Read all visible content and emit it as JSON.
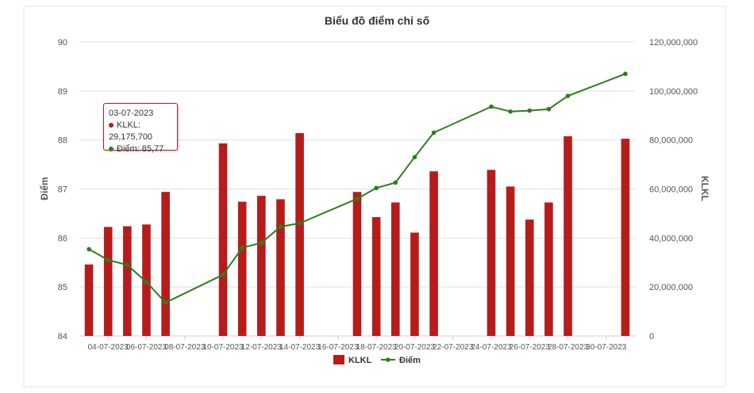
{
  "chart_data": {
    "type": "bar+line",
    "title": "Biểu đồ điểm chỉ số",
    "ylabel_left": "Điểm",
    "ylabel_right": "KLKL",
    "y_left": {
      "min": 84,
      "max": 90,
      "ticks": [
        "84",
        "85",
        "86",
        "87",
        "88",
        "89",
        "90"
      ]
    },
    "y_right": {
      "min": 0,
      "max": 120000000,
      "ticks": [
        "0",
        "20,000,000",
        "40,000,000",
        "60,000,000",
        "80,000,000",
        "100,000,000",
        "120,000,000"
      ]
    },
    "x_ticks": [
      "04-07-2023",
      "06-07-2023",
      "08-07-2023",
      "10-07-2023",
      "12-07-2023",
      "14-07-2023",
      "16-07-2023",
      "18-07-2023",
      "20-07-2023",
      "22-07-2023",
      "24-07-2023",
      "26-07-2023",
      "28-07-2023",
      "30-07-2023"
    ],
    "x_start": "2023-07-03",
    "x_end": "2023-07-31",
    "series": [
      {
        "name": "KLKL",
        "type": "bar",
        "color": "#b71c1c",
        "points": [
          {
            "date": "2023-07-03",
            "value": 29175700
          },
          {
            "date": "2023-07-04",
            "value": 44500000
          },
          {
            "date": "2023-07-05",
            "value": 44800000
          },
          {
            "date": "2023-07-06",
            "value": 45500000
          },
          {
            "date": "2023-07-07",
            "value": 58800000
          },
          {
            "date": "2023-07-10",
            "value": 78600000
          },
          {
            "date": "2023-07-11",
            "value": 54800000
          },
          {
            "date": "2023-07-12",
            "value": 57200000
          },
          {
            "date": "2023-07-13",
            "value": 55800000
          },
          {
            "date": "2023-07-14",
            "value": 82800000
          },
          {
            "date": "2023-07-17",
            "value": 58800000
          },
          {
            "date": "2023-07-18",
            "value": 48500000
          },
          {
            "date": "2023-07-19",
            "value": 54500000
          },
          {
            "date": "2023-07-20",
            "value": 42200000
          },
          {
            "date": "2023-07-21",
            "value": 67200000
          },
          {
            "date": "2023-07-24",
            "value": 67800000
          },
          {
            "date": "2023-07-25",
            "value": 61000000
          },
          {
            "date": "2023-07-26",
            "value": 47500000
          },
          {
            "date": "2023-07-27",
            "value": 54500000
          },
          {
            "date": "2023-07-28",
            "value": 81500000
          },
          {
            "date": "2023-07-31",
            "value": 80500000
          }
        ]
      },
      {
        "name": "Điểm",
        "type": "line",
        "color": "#2e7d1e",
        "points": [
          {
            "date": "2023-07-03",
            "value": 85.77
          },
          {
            "date": "2023-07-04",
            "value": 85.55
          },
          {
            "date": "2023-07-05",
            "value": 85.45
          },
          {
            "date": "2023-07-06",
            "value": 85.1
          },
          {
            "date": "2023-07-07",
            "value": 84.68
          },
          {
            "date": "2023-07-10",
            "value": 85.25
          },
          {
            "date": "2023-07-11",
            "value": 85.8
          },
          {
            "date": "2023-07-12",
            "value": 85.9
          },
          {
            "date": "2023-07-13",
            "value": 86.23
          },
          {
            "date": "2023-07-14",
            "value": 86.3
          },
          {
            "date": "2023-07-17",
            "value": 86.8
          },
          {
            "date": "2023-07-18",
            "value": 87.02
          },
          {
            "date": "2023-07-19",
            "value": 87.13
          },
          {
            "date": "2023-07-20",
            "value": 87.65
          },
          {
            "date": "2023-07-21",
            "value": 88.15
          },
          {
            "date": "2023-07-24",
            "value": 88.68
          },
          {
            "date": "2023-07-25",
            "value": 88.58
          },
          {
            "date": "2023-07-26",
            "value": 88.6
          },
          {
            "date": "2023-07-27",
            "value": 88.63
          },
          {
            "date": "2023-07-28",
            "value": 88.9
          },
          {
            "date": "2023-07-31",
            "value": 89.35
          }
        ]
      }
    ],
    "legend": {
      "position": "bottom-center"
    },
    "grid": true,
    "tooltip": {
      "date": "03-07-2023",
      "line1": "KLKL: 29,175,700",
      "line2": "Điểm: 85,77"
    }
  }
}
